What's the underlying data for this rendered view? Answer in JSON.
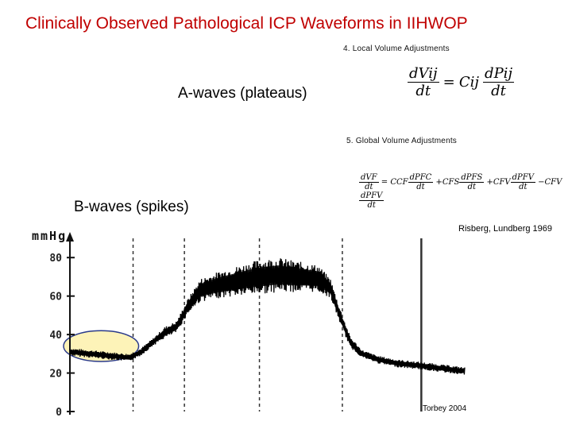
{
  "title": "Clinically Observed Pathological ICP Waveforms in IIHWOP",
  "labels": {
    "a_waves": "A-waves (plateaus)",
    "b_waves": "B-waves (spikes)"
  },
  "equations": {
    "eq4_heading": "4. Local Volume Adjustments",
    "eq4": {
      "lhs_num": "dVij",
      "lhs_den": "dt",
      "eq": "=",
      "coef": "Cij",
      "rhs_num": "dPij",
      "rhs_den": "dt"
    },
    "eq5_heading": "5. Global Volume Adjustments",
    "eq5": {
      "lhs_num": "dVF",
      "lhs_den": "dt",
      "eq": "=",
      "terms": [
        {
          "sign": "",
          "coef": "CCF",
          "num": "dPFC",
          "den": "dt"
        },
        {
          "sign": "+",
          "coef": "CFS",
          "num": "dPFS",
          "den": "dt"
        },
        {
          "sign": "+",
          "coef": "CFV",
          "num": "dPFV",
          "den": "dt"
        },
        {
          "sign": "−",
          "coef": "CFV",
          "num": "dPFV",
          "den": "dt"
        }
      ]
    }
  },
  "citations": {
    "top": "Risberg, Lundberg 1969",
    "bottom": "Torbey 2004"
  },
  "colors": {
    "title": "#c00000",
    "trace": "#000000",
    "highlight_fill": "#fdf3b8",
    "highlight_stroke": "#2a3a8a"
  },
  "chart_data": {
    "type": "line",
    "title": "",
    "xlabel": "",
    "ylabel": "mmHg",
    "ylim": [
      0,
      90
    ],
    "yticks": [
      0,
      20,
      40,
      60,
      80
    ],
    "grid": "vertical dashed",
    "xlim": [
      0,
      100
    ],
    "vlines_x": [
      16,
      29,
      48,
      69,
      89
    ],
    "highlight": {
      "label": "",
      "x_range": [
        0,
        15
      ],
      "y_range": [
        26,
        42
      ]
    },
    "series": [
      {
        "name": "ICP",
        "x": [
          0,
          5,
          10,
          15,
          18,
          21,
          24,
          27,
          30,
          33,
          38,
          43,
          48,
          53,
          58,
          63,
          66,
          68,
          71,
          74,
          78,
          83,
          88,
          92,
          96,
          100
        ],
        "y": [
          31,
          30,
          29,
          28,
          31,
          36,
          41,
          44,
          55,
          63,
          66,
          68,
          70,
          71,
          70,
          69,
          64,
          52,
          36,
          30,
          27,
          25,
          24,
          23,
          22,
          21
        ],
        "amplitude": [
          2,
          2,
          2,
          2,
          2,
          2,
          3,
          3,
          4,
          6,
          7,
          8,
          9,
          9,
          8,
          7,
          5,
          4,
          3,
          2,
          2,
          2,
          2,
          2,
          2,
          2
        ]
      }
    ]
  }
}
